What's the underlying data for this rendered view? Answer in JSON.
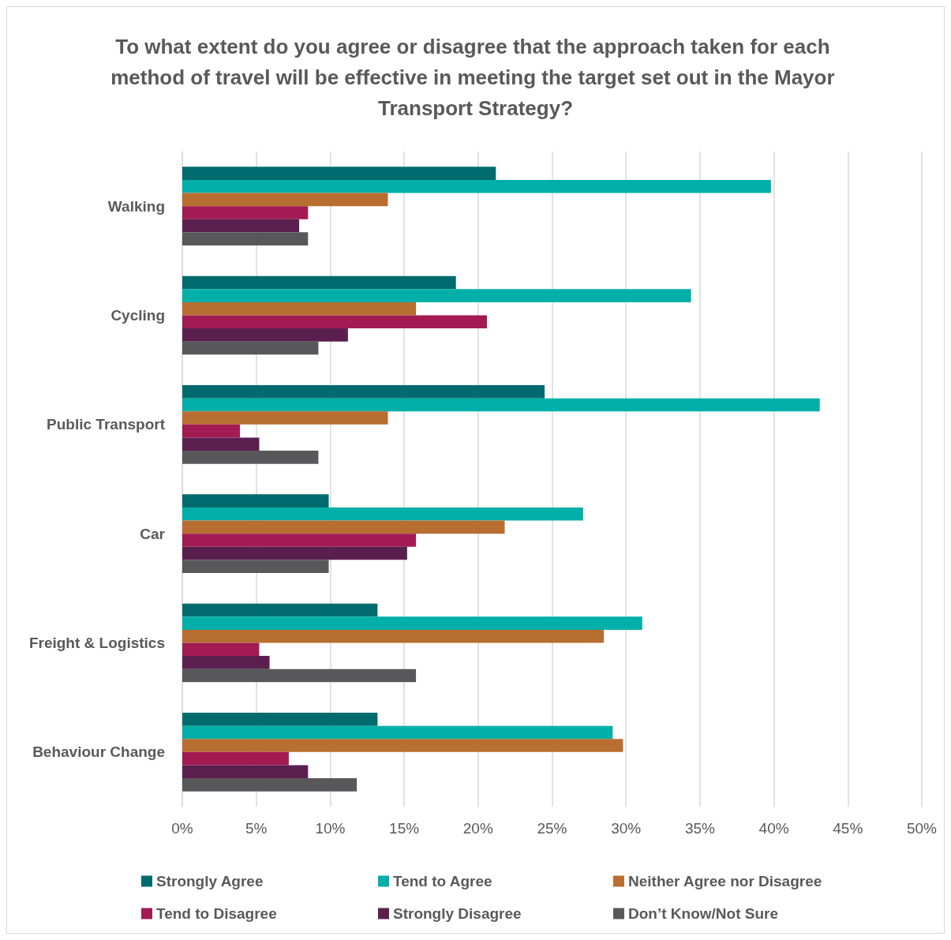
{
  "chart_data": {
    "type": "bar",
    "orientation": "horizontal",
    "title": "To what extent do you agree or disagree that the approach taken for each method of travel will be effective in meeting the target set out in the Mayor Transport Strategy?",
    "categories": [
      "Walking",
      "Cycling",
      "Public Transport",
      "Car",
      "Freight & Logistics",
      "Behaviour Change"
    ],
    "series": [
      {
        "name": "Strongly Agree",
        "color": "#006b6e",
        "values": [
          21.2,
          18.5,
          24.5,
          9.9,
          13.2,
          13.2
        ]
      },
      {
        "name": "Tend to Agree",
        "color": "#00b0a8",
        "values": [
          39.8,
          34.4,
          43.1,
          27.1,
          31.1,
          29.1
        ]
      },
      {
        "name": "Neither Agree nor Disagree",
        "color": "#b86e30",
        "values": [
          13.9,
          15.8,
          13.9,
          21.8,
          28.5,
          29.8
        ]
      },
      {
        "name": "Tend to Disagree",
        "color": "#a21b52",
        "values": [
          8.5,
          20.6,
          3.9,
          15.8,
          5.2,
          7.2
        ]
      },
      {
        "name": "Strongly Disagree",
        "color": "#5b1f4f",
        "values": [
          7.9,
          11.2,
          5.2,
          15.2,
          5.9,
          8.5
        ]
      },
      {
        "name": "Don’t Know/Not Sure",
        "color": "#58585b",
        "values": [
          8.5,
          9.2,
          9.2,
          9.9,
          15.8,
          11.8
        ]
      }
    ],
    "xlim": [
      0,
      50
    ],
    "xticks": [
      {
        "value": 0,
        "label": "0%"
      },
      {
        "value": 5,
        "label": "5%"
      },
      {
        "value": 10,
        "label": "10%"
      },
      {
        "value": 15,
        "label": "15%"
      },
      {
        "value": 20,
        "label": "20%"
      },
      {
        "value": 25,
        "label": "25%"
      },
      {
        "value": 30,
        "label": "30%"
      },
      {
        "value": 35,
        "label": "35%"
      },
      {
        "value": 40,
        "label": "40%"
      },
      {
        "value": 45,
        "label": "45%"
      },
      {
        "value": 50,
        "label": "50%"
      }
    ],
    "grid": "x",
    "legend": "bottom"
  }
}
